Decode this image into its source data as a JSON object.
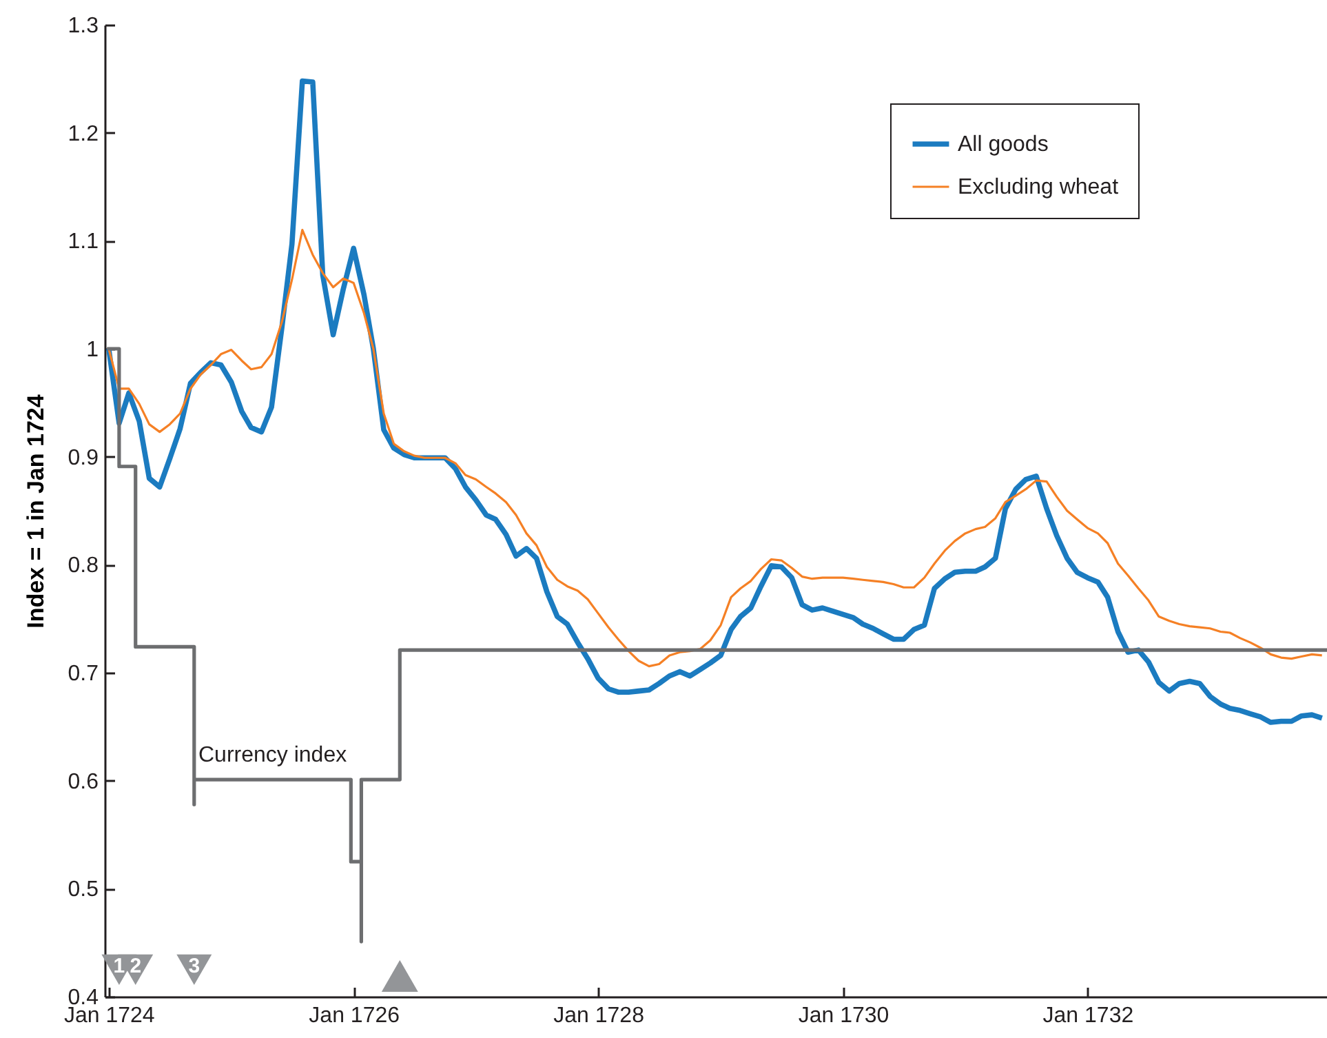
{
  "chart_data": {
    "type": "line",
    "ylabel": "Index = 1 in Jan 1724",
    "x": [
      "1724-01",
      "1724-02",
      "1724-03",
      "1724-04",
      "1724-05",
      "1724-06",
      "1724-07",
      "1724-08",
      "1724-09",
      "1724-10",
      "1724-11",
      "1724-12",
      "1725-01",
      "1725-02",
      "1725-03",
      "1725-04",
      "1725-05",
      "1725-06",
      "1725-07",
      "1725-08",
      "1725-09",
      "1725-10",
      "1725-11",
      "1725-12",
      "1726-01",
      "1726-02",
      "1726-03",
      "1726-04",
      "1726-05",
      "1726-06",
      "1726-07",
      "1726-08",
      "1726-09",
      "1726-10",
      "1726-11",
      "1726-12",
      "1727-01",
      "1727-02",
      "1727-03",
      "1727-04",
      "1727-05",
      "1727-06",
      "1727-07",
      "1727-08",
      "1727-09",
      "1727-10",
      "1727-11",
      "1727-12",
      "1728-01",
      "1728-02",
      "1728-03",
      "1728-04",
      "1728-05",
      "1728-06",
      "1728-07",
      "1728-08",
      "1728-09",
      "1728-10",
      "1728-11",
      "1728-12",
      "1729-01",
      "1729-02",
      "1729-03",
      "1729-04",
      "1729-05",
      "1729-06",
      "1729-07",
      "1729-08",
      "1729-09",
      "1729-10",
      "1729-11",
      "1729-12",
      "1730-01",
      "1730-02",
      "1730-03",
      "1730-04",
      "1730-05",
      "1730-06",
      "1730-07",
      "1730-08",
      "1730-09",
      "1730-10",
      "1730-11",
      "1730-12",
      "1731-01",
      "1731-02",
      "1731-03",
      "1731-04",
      "1731-05",
      "1731-06",
      "1731-07",
      "1731-08",
      "1731-09",
      "1731-10",
      "1731-11",
      "1731-12",
      "1732-01",
      "1732-02",
      "1732-03",
      "1732-04",
      "1732-05",
      "1732-06",
      "1732-07",
      "1732-08",
      "1732-09",
      "1732-10",
      "1732-11",
      "1732-12",
      "1733-01",
      "1733-02",
      "1733-03",
      "1733-04",
      "1733-05",
      "1733-06",
      "1733-07",
      "1733-08",
      "1733-09",
      "1733-10",
      "1733-11",
      "1733-12"
    ],
    "series": [
      {
        "name": "All goods",
        "color": "#1b7bc0",
        "values": [
          1.0,
          0.931,
          0.959,
          0.933,
          0.88,
          0.872,
          0.898,
          0.926,
          0.968,
          0.978,
          0.987,
          0.985,
          0.969,
          0.942,
          0.927,
          0.923,
          0.946,
          1.02,
          1.097,
          1.248,
          1.247,
          1.068,
          1.013,
          1.055,
          1.093,
          1.05,
          1.0,
          0.925,
          0.908,
          0.902,
          0.899,
          0.899,
          0.899,
          0.899,
          0.889,
          0.872,
          0.86,
          0.846,
          0.842,
          0.828,
          0.808,
          0.815,
          0.806,
          0.775,
          0.752,
          0.745,
          0.728,
          0.713,
          0.695,
          0.685,
          0.682,
          0.682,
          0.683,
          0.684,
          0.69,
          0.697,
          0.701,
          0.697,
          0.703,
          0.709,
          0.716,
          0.74,
          0.752,
          0.76,
          0.78,
          0.799,
          0.798,
          0.788,
          0.763,
          0.758,
          0.76,
          0.757,
          0.754,
          0.751,
          0.745,
          0.741,
          0.736,
          0.731,
          0.731,
          0.74,
          0.744,
          0.778,
          0.787,
          0.793,
          0.794,
          0.794,
          0.798,
          0.806,
          0.852,
          0.87,
          0.879,
          0.882,
          0.852,
          0.827,
          0.806,
          0.793,
          0.788,
          0.784,
          0.77,
          0.738,
          0.719,
          0.721,
          0.71,
          0.691,
          0.683,
          0.69,
          0.692,
          0.69,
          0.678,
          0.671,
          0.667,
          0.665,
          0.662,
          0.659,
          0.654,
          0.655,
          0.655,
          0.66,
          0.661,
          0.658
        ]
      },
      {
        "name": "Excluding wheat",
        "color": "#f58025",
        "values": [
          1.0,
          0.963,
          0.963,
          0.949,
          0.93,
          0.923,
          0.93,
          0.94,
          0.963,
          0.976,
          0.985,
          0.995,
          0.999,
          0.989,
          0.981,
          0.983,
          0.995,
          1.025,
          1.064,
          1.11,
          1.087,
          1.07,
          1.057,
          1.065,
          1.061,
          1.033,
          1.0,
          0.94,
          0.912,
          0.905,
          0.901,
          0.899,
          0.899,
          0.899,
          0.894,
          0.883,
          0.879,
          0.872,
          0.866,
          0.858,
          0.846,
          0.829,
          0.818,
          0.798,
          0.786,
          0.78,
          0.776,
          0.768,
          0.755,
          0.742,
          0.731,
          0.72,
          0.711,
          0.706,
          0.708,
          0.716,
          0.719,
          0.72,
          0.722,
          0.73,
          0.744,
          0.77,
          0.778,
          0.785,
          0.796,
          0.805,
          0.804,
          0.797,
          0.789,
          0.787,
          0.788,
          0.788,
          0.788,
          0.787,
          0.786,
          0.785,
          0.784,
          0.782,
          0.779,
          0.779,
          0.788,
          0.801,
          0.813,
          0.822,
          0.829,
          0.833,
          0.835,
          0.843,
          0.858,
          0.864,
          0.87,
          0.878,
          0.877,
          0.863,
          0.85,
          0.842,
          0.834,
          0.829,
          0.82,
          0.801,
          0.79,
          0.778,
          0.767,
          0.752,
          0.748,
          0.745,
          0.743,
          0.742,
          0.741,
          0.738,
          0.737,
          0.732,
          0.728,
          0.723,
          0.717,
          0.714,
          0.713,
          0.715,
          0.717,
          0.716
        ]
      },
      {
        "name": "Currency index",
        "color": "#6d6e70",
        "x": [
          "1724-01-01",
          "1724-02-01",
          "1724-02-01",
          "1724-03-21",
          "1724-03-21",
          "1724-09-12",
          "1724-09-12",
          "1724-09-12",
          "1725-12-24",
          "1725-12-24",
          "1726-01-24",
          "1726-01-24",
          "1726-01-24",
          "1726-05-19",
          "1726-05-19",
          "1733-12-16"
        ],
        "values": [
          1.0,
          1.0,
          0.891,
          0.891,
          0.724,
          0.724,
          0.578,
          0.601,
          0.601,
          0.525,
          0.525,
          0.451,
          0.601,
          0.601,
          0.721,
          0.721
        ]
      }
    ],
    "xlim": [
      "1723-12-20",
      "1733-12-16"
    ],
    "xticks": [
      {
        "value": "1724-01",
        "label": "Jan 1724"
      },
      {
        "value": "1726-01",
        "label": "Jan 1726"
      },
      {
        "value": "1728-01",
        "label": "Jan 1728"
      },
      {
        "value": "1730-01",
        "label": "Jan 1730"
      },
      {
        "value": "1732-01",
        "label": "Jan 1732"
      }
    ],
    "ylim": [
      0.4,
      1.3
    ],
    "yticks": [
      0.4,
      0.5,
      0.6,
      0.7,
      0.8,
      0.9,
      1,
      1.1,
      1.2,
      1.3
    ],
    "annotations": [
      {
        "text": "1",
        "x": "1724-02-01",
        "y": 0.425
      },
      {
        "text": "2",
        "x": "1724-03-21",
        "y": 0.425
      },
      {
        "text": "3",
        "x": "1724-09-12",
        "y": 0.425
      }
    ],
    "legend": "top right",
    "grid": false,
    "line_style": "solid"
  }
}
